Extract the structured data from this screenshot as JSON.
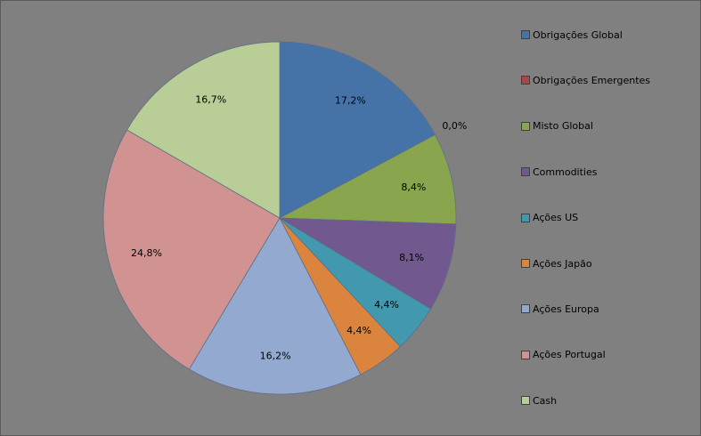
{
  "chart_data": {
    "type": "pie",
    "title": "",
    "legend_position": "right",
    "slices": [
      {
        "name": "Obrigações Global",
        "value": 17.2,
        "label": "17,2%",
        "color": "#4572A7"
      },
      {
        "name": "Obrigações Emergentes",
        "value": 0.0,
        "label": "0,0%",
        "color": "#AA4643"
      },
      {
        "name": "Misto Global",
        "value": 8.4,
        "label": "8,4%",
        "color": "#89A54E"
      },
      {
        "name": "Commodities",
        "value": 8.1,
        "label": "8,1%",
        "color": "#71588F"
      },
      {
        "name": "Ações US",
        "value": 4.4,
        "label": "4,4%",
        "color": "#4198AF"
      },
      {
        "name": "Ações Japão",
        "value": 4.4,
        "label": "4,4%",
        "color": "#DB843D"
      },
      {
        "name": "Ações Europa",
        "value": 16.2,
        "label": "16,2%",
        "color": "#93A9CF"
      },
      {
        "name": "Ações Portugal",
        "value": 24.8,
        "label": "24,8%",
        "color": "#D19392"
      },
      {
        "name": "Cash",
        "value": 16.7,
        "label": "16,7%",
        "color": "#B9CD96"
      }
    ]
  }
}
